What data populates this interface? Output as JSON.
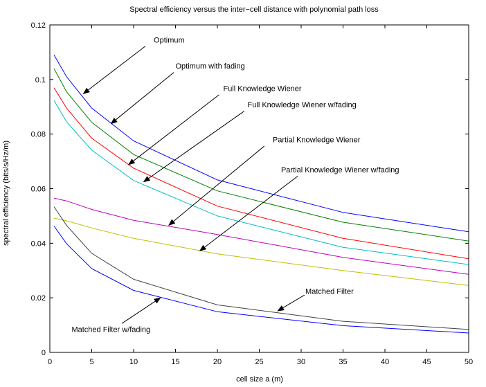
{
  "chart_data": {
    "type": "line",
    "title": "Spectral efficiency versus the inter−cell distance with polynomial path loss",
    "xlabel": "cell size a (m)",
    "ylabel": "spectral efficiency (bits/s/Hz/m)",
    "xlim": [
      0,
      50
    ],
    "ylim": [
      0,
      0.12
    ],
    "xticks": [
      "0",
      "5",
      "10",
      "15",
      "20",
      "25",
      "30",
      "35",
      "40",
      "45",
      "50"
    ],
    "yticks": [
      "0",
      "0.02",
      "0.04",
      "0.06",
      "0.08",
      "0.1",
      "0.12"
    ],
    "grid": false,
    "legend": "none",
    "x": [
      0.5,
      2,
      5,
      10,
      20,
      35,
      50
    ],
    "series": [
      {
        "name": "Optimum",
        "color": "#0000ff",
        "values": [
          0.109,
          0.101,
          0.0895,
          0.0775,
          0.0632,
          0.0513,
          0.0442
        ]
      },
      {
        "name": "Optimum with fading",
        "color": "#008000",
        "values": [
          0.104,
          0.0955,
          0.0843,
          0.0725,
          0.0592,
          0.0477,
          0.0408
        ]
      },
      {
        "name": "Full Knowledge Wiener",
        "color": "#ff0000",
        "values": [
          0.097,
          0.0895,
          0.0785,
          0.0675,
          0.0536,
          0.0418,
          0.0343
        ]
      },
      {
        "name": "Full Knowledge Wiener w/fading",
        "color": "#00bfbf",
        "values": [
          0.0923,
          0.0845,
          0.0741,
          0.063,
          0.05,
          0.0385,
          0.0322
        ]
      },
      {
        "name": "Partial Knowledge Wiener",
        "color": "#bf00bf",
        "values": [
          0.0565,
          0.0555,
          0.0524,
          0.0484,
          0.0432,
          0.0348,
          0.0286
        ]
      },
      {
        "name": "Partial Knowledge Wiener w/fading",
        "color": "#bfbf00",
        "values": [
          0.0492,
          0.0482,
          0.0456,
          0.0418,
          0.0361,
          0.03,
          0.0245
        ]
      },
      {
        "name": "Matched Filter",
        "color": "#404040",
        "values": [
          0.0534,
          0.0465,
          0.0363,
          0.0268,
          0.0174,
          0.0114,
          0.0084
        ]
      },
      {
        "name": "Matched Filter w/fading",
        "color": "#0000ff",
        "values": [
          0.0463,
          0.0398,
          0.0307,
          0.0227,
          0.0149,
          0.0098,
          0.0071
        ]
      }
    ],
    "annotations": [
      {
        "text": "Optimum",
        "text_at": [
          12.4,
          0.1135
        ],
        "arrow_from": [
          11.4,
          0.1122
        ],
        "arrow_to": [
          4.0,
          0.0948
        ]
      },
      {
        "text": "Optimum with fading",
        "text_at": [
          15.0,
          0.104
        ],
        "arrow_from": [
          14.8,
          0.1026
        ],
        "arrow_to": [
          7.3,
          0.0838
        ]
      },
      {
        "text": "Full Knowledge Wiener",
        "text_at": [
          20.7,
          0.0958
        ],
        "arrow_from": [
          20.2,
          0.0944
        ],
        "arrow_to": [
          9.4,
          0.0688
        ]
      },
      {
        "text": "Full Knowledge Wiener w/fading",
        "text_at": [
          23.6,
          0.0898
        ],
        "arrow_from": [
          23.2,
          0.0884
        ],
        "arrow_to": [
          11.2,
          0.0625
        ]
      },
      {
        "text": "Partial Knowledge Wiener",
        "text_at": [
          26.6,
          0.077
        ],
        "arrow_from": [
          25.6,
          0.0756
        ],
        "arrow_to": [
          14.2,
          0.0466
        ]
      },
      {
        "text": "Partial Knowledge Wiener w/fading",
        "text_at": [
          27.6,
          0.066
        ],
        "arrow_from": [
          29.6,
          0.0646
        ],
        "arrow_to": [
          17.9,
          0.0372
        ]
      },
      {
        "text": "Matched Filter",
        "text_at": [
          30.5,
          0.0215
        ],
        "arrow_from": [
          30.4,
          0.021
        ],
        "arrow_to": [
          27.2,
          0.0152
        ]
      },
      {
        "text": "Matched Filter w/fading",
        "text_at": [
          2.6,
          0.0075
        ],
        "arrow_from": [
          8.6,
          0.0106
        ],
        "arrow_to": [
          13.2,
          0.02
        ]
      }
    ]
  }
}
